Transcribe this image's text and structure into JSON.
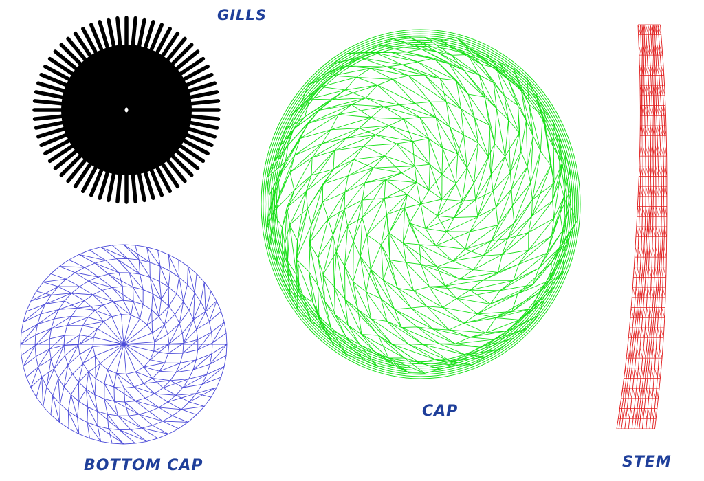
{
  "labels": {
    "gills": "GILLS",
    "cap": "CAP",
    "bottom_cap": "BOTTOM CAP",
    "stem": "STEM"
  },
  "colors": {
    "label_text": "#1f3f9a",
    "gills": "#000000",
    "cap_mesh": "#16e016",
    "bottom_cap_mesh": "#4a4ad8",
    "stem_mesh": "#e11b1b",
    "background": "#ffffff"
  }
}
